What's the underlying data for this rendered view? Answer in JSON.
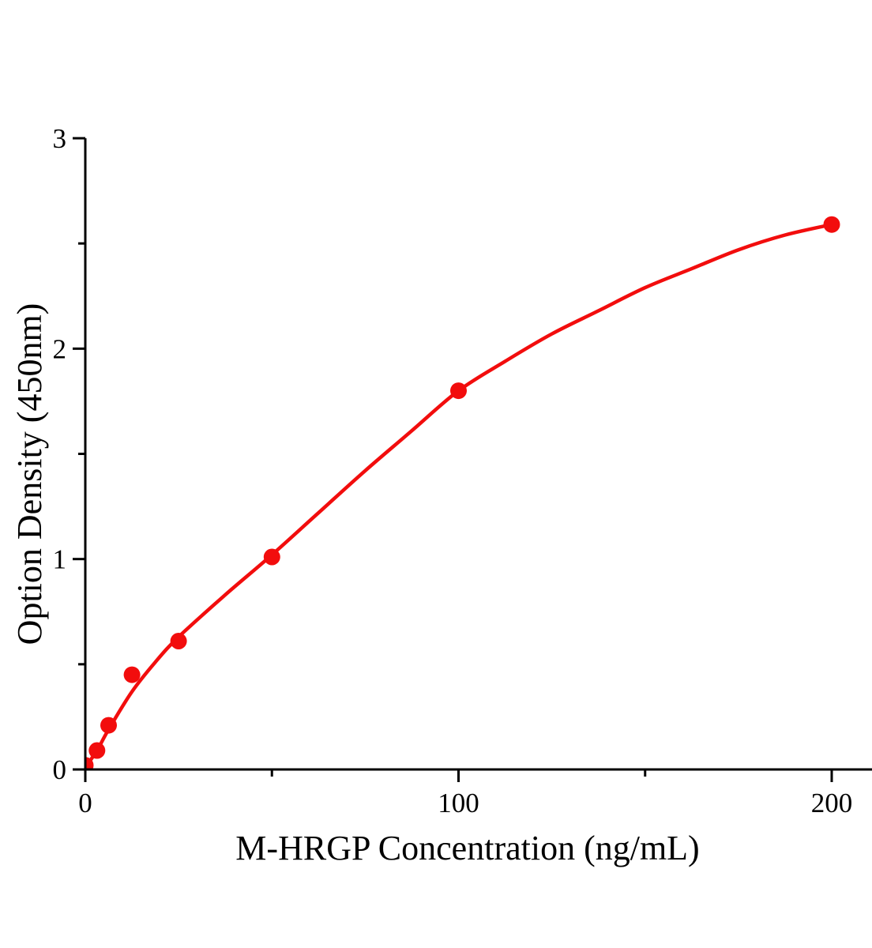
{
  "page": {
    "background": "#ffffff"
  },
  "chart_data": {
    "type": "scatter",
    "title": "",
    "xlabel": "M-HRGP Concentration (ng/mL)",
    "ylabel": "Option Density (450nm)",
    "xlim": [
      0,
      200
    ],
    "ylim": [
      0,
      3
    ],
    "x_ticks_major": [
      0,
      100,
      200
    ],
    "x_ticks_minor": [
      50,
      150
    ],
    "y_ticks_major": [
      0,
      1,
      2,
      3
    ],
    "y_ticks_minor": [
      0.5,
      1.5,
      2.5
    ],
    "grid": "off",
    "legend": "none",
    "points": [
      [
        0,
        0.02
      ],
      [
        3.125,
        0.09
      ],
      [
        6.25,
        0.21
      ],
      [
        12.5,
        0.45
      ],
      [
        25,
        0.61
      ],
      [
        50,
        1.01
      ],
      [
        100,
        1.8
      ],
      [
        200,
        2.59
      ]
    ],
    "fit_curve": [
      [
        0,
        0.01
      ],
      [
        3.125,
        0.09
      ],
      [
        6.25,
        0.19
      ],
      [
        12.5,
        0.37
      ],
      [
        18.75,
        0.51
      ],
      [
        25,
        0.63
      ],
      [
        37.5,
        0.83
      ],
      [
        50,
        1.02
      ],
      [
        62.5,
        1.22
      ],
      [
        75,
        1.42
      ],
      [
        87.5,
        1.61
      ],
      [
        100,
        1.8
      ],
      [
        112.5,
        1.94
      ],
      [
        125,
        2.07
      ],
      [
        137.5,
        2.18
      ],
      [
        150,
        2.29
      ],
      [
        162.5,
        2.38
      ],
      [
        175,
        2.47
      ],
      [
        187.5,
        2.54
      ],
      [
        200,
        2.59
      ]
    ],
    "colors": {
      "series": "#f20d0d",
      "axis": "#000000",
      "background": "#ffffff"
    },
    "marker": {
      "shape": "circle",
      "radius_px": 10.5
    }
  }
}
